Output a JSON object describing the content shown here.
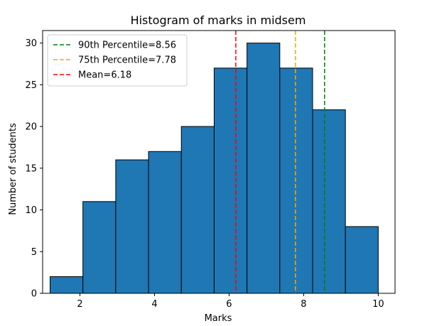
{
  "chart_data": {
    "type": "bar",
    "title": "Histogram of marks in midsem",
    "xlabel": "Marks",
    "ylabel": "Number of students",
    "xlim": [
      1.0,
      10.45
    ],
    "ylim": [
      0,
      31.5
    ],
    "xticks": [
      2,
      4,
      6,
      8,
      10
    ],
    "yticks": [
      0,
      5,
      10,
      15,
      20,
      25,
      30
    ],
    "bin_edges": [
      1.2,
      2.08,
      2.96,
      3.84,
      4.72,
      5.6,
      6.48,
      7.36,
      8.24,
      9.12,
      10.0
    ],
    "counts": [
      2,
      11,
      16,
      17,
      20,
      27,
      30,
      27,
      22,
      8
    ],
    "bar_color": "#1f77b4",
    "bar_edge_color": "#000000",
    "grid": false,
    "legend_position": "upper-left",
    "reference_lines": [
      {
        "label": "90th Percentile=8.56",
        "x": 8.56,
        "color": "#008000"
      },
      {
        "label": "75th Percentile=7.78",
        "x": 7.78,
        "color": "#ffa500"
      },
      {
        "label": "Mean=6.18",
        "x": 6.18,
        "color": "#ff0000"
      }
    ]
  }
}
